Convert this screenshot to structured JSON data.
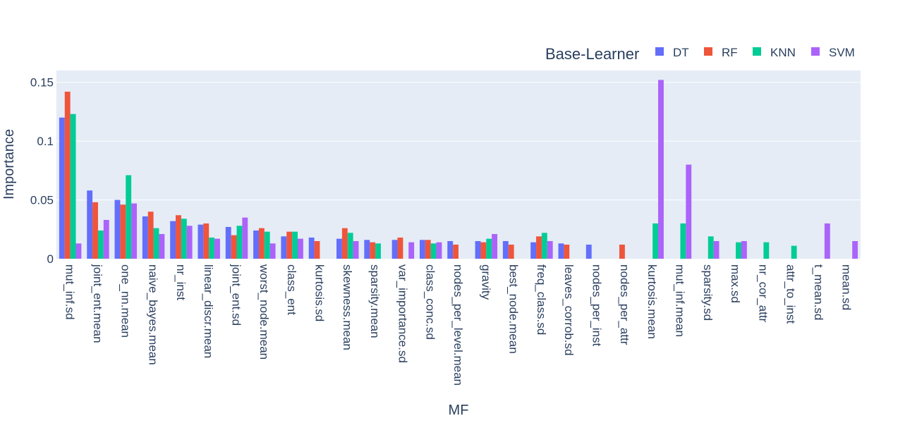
{
  "chart_data": {
    "type": "bar",
    "xlabel": "MF",
    "ylabel": "Importance",
    "ylim": [
      0,
      0.16
    ],
    "yticks": [
      0,
      0.05,
      0.1,
      0.15
    ],
    "ytick_labels": [
      "0",
      "0.05",
      "0.1",
      "0.15"
    ],
    "legend_title": "Base-Learner",
    "legend_position": "top-right",
    "grid": true,
    "colors": {
      "plot_bg": "#e5ecf6",
      "grid": "#ffffff",
      "text": "#2a3f5f"
    },
    "categories": [
      "mut_inf.sd",
      "joint_ent.mean",
      "one_nn.mean",
      "naive_bayes.mean",
      "nr_inst",
      "linear_discr.mean",
      "joint_ent.sd",
      "worst_node.mean",
      "class_ent",
      "kurtosis.sd",
      "skewness.mean",
      "sparsity.mean",
      "var_importance.sd",
      "class_conc.sd",
      "nodes_per_level.mean",
      "gravity",
      "best_node.mean",
      "freq_class.sd",
      "leaves_corrob.sd",
      "nodes_per_inst",
      "nodes_per_attr",
      "kurtosis.mean",
      "mut_inf.mean",
      "sparsity.sd",
      "max.sd",
      "nr_cor_attr",
      "attr_to_inst",
      "t_mean.sd",
      "mean.sd"
    ],
    "series": [
      {
        "name": "DT",
        "color": "#636efa",
        "values": [
          0.12,
          0.058,
          0.05,
          0.036,
          0.032,
          0.029,
          0.027,
          0.024,
          0.019,
          0.018,
          0.017,
          0.016,
          0.016,
          0.016,
          0.015,
          0.015,
          0.015,
          0.014,
          0.013,
          0.012,
          null,
          null,
          null,
          null,
          null,
          null,
          null,
          null,
          null
        ]
      },
      {
        "name": "RF",
        "color": "#ef553b",
        "values": [
          0.142,
          0.048,
          0.046,
          0.04,
          0.037,
          0.03,
          0.02,
          0.026,
          0.023,
          0.015,
          0.026,
          0.014,
          0.018,
          0.016,
          0.012,
          0.014,
          0.012,
          0.019,
          0.012,
          null,
          0.012,
          null,
          null,
          null,
          null,
          null,
          null,
          null,
          null
        ]
      },
      {
        "name": "KNN",
        "color": "#00cc96",
        "values": [
          0.123,
          0.024,
          0.071,
          0.026,
          0.034,
          0.018,
          0.028,
          0.023,
          0.023,
          null,
          0.022,
          0.013,
          null,
          0.013,
          null,
          0.017,
          null,
          0.022,
          null,
          null,
          null,
          0.03,
          0.03,
          0.019,
          0.014,
          0.014,
          0.011,
          null,
          null
        ]
      },
      {
        "name": "SVM",
        "color": "#ab63fa",
        "values": [
          0.013,
          0.033,
          0.047,
          0.021,
          0.028,
          0.017,
          0.035,
          0.013,
          0.017,
          null,
          0.015,
          null,
          0.014,
          0.014,
          null,
          0.021,
          null,
          0.015,
          null,
          null,
          null,
          0.152,
          0.08,
          0.015,
          0.015,
          null,
          null,
          0.03,
          0.015
        ]
      }
    ]
  }
}
